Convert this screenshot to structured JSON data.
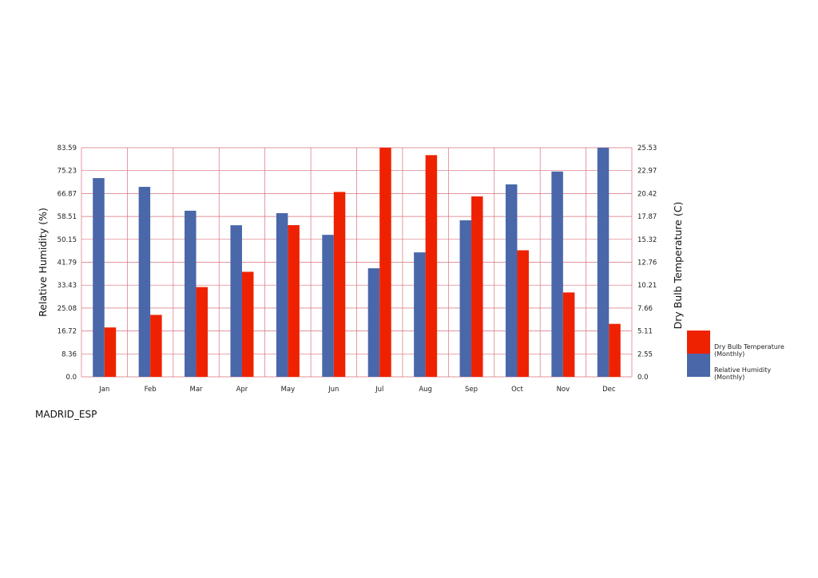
{
  "station": "MADRID_ESP",
  "chart_data": {
    "type": "bar",
    "categories": [
      "Jan",
      "Feb",
      "Mar",
      "Apr",
      "May",
      "Jun",
      "Jul",
      "Aug",
      "Sep",
      "Oct",
      "Nov",
      "Dec"
    ],
    "series": [
      {
        "name": "Relative Humidity (Monthly)",
        "axis": "left",
        "color": "#4a67aa",
        "values": [
          72.5,
          69.3,
          60.6,
          55.3,
          59.7,
          51.8,
          39.6,
          45.4,
          57.1,
          70.2,
          74.9,
          83.59
        ]
      },
      {
        "name": "Dry Bulb Temperature (Monthly)",
        "axis": "right",
        "color": "#ee2200",
        "values": [
          5.5,
          6.9,
          10.0,
          11.7,
          16.9,
          20.6,
          25.53,
          24.7,
          20.1,
          14.1,
          9.4,
          5.9
        ]
      }
    ],
    "ylabel": "Relative Humidity (%)",
    "y2label": "Dry Bulb Temperature (C)",
    "ylim": [
      0,
      83.59
    ],
    "y2lim": [
      0,
      25.53
    ],
    "yticks": [
      "0.0",
      "8.36",
      "16.72",
      "25.08",
      "33.43",
      "41.79",
      "50.15",
      "58.51",
      "66.87",
      "75.23",
      "83.59"
    ],
    "y2ticks": [
      "0.0",
      "2.55",
      "5.11",
      "7.66",
      "10.21",
      "12.76",
      "15.32",
      "17.87",
      "20.42",
      "22.97",
      "25.53"
    ],
    "legend": {
      "placement": "right",
      "items": [
        {
          "label1": "Dry Bulb Temperature",
          "label2": "(Monthly)",
          "color": "#ee2200"
        },
        {
          "label1": "Relative Humidity",
          "label2": "(Monthly)",
          "color": "#4a67aa"
        }
      ]
    },
    "grid": true,
    "grid_color": "#d9707a"
  }
}
